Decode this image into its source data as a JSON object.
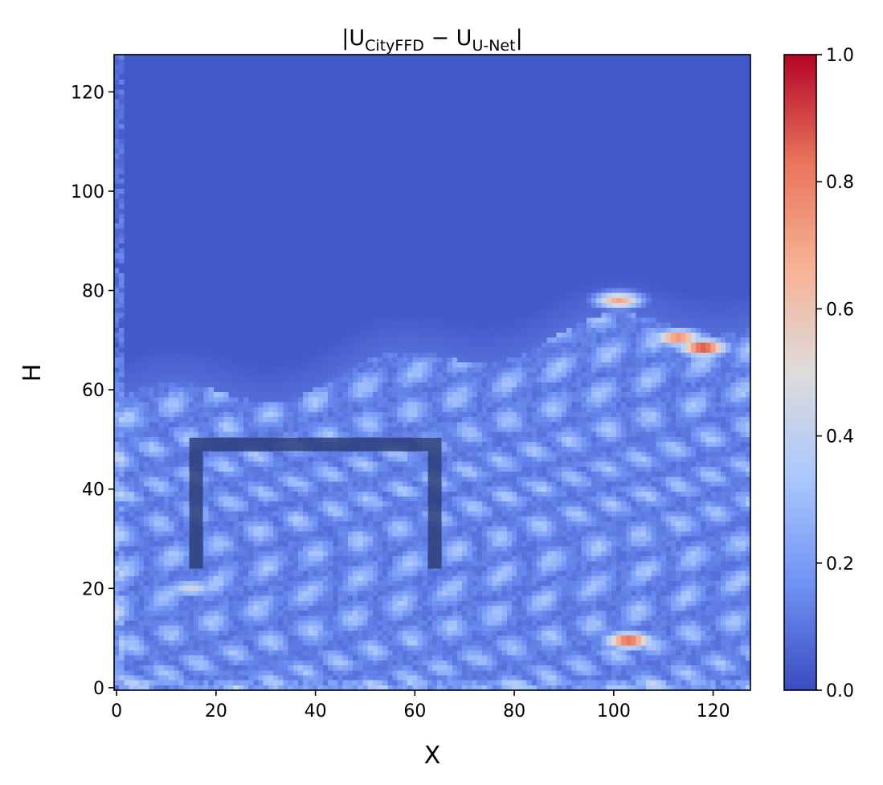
{
  "chart_data": {
    "type": "heatmap",
    "title": {
      "prefix": "|U",
      "sub1": "CityFFD",
      "minus": " − U",
      "sub2": "U-Net",
      "suffix": "|"
    },
    "xlabel": "X",
    "ylabel": "H",
    "xlim": [
      -0.5,
      127.5
    ],
    "ylim": [
      -0.5,
      127.5
    ],
    "xticks": [
      0,
      20,
      40,
      60,
      80,
      100,
      120
    ],
    "yticks": [
      0,
      20,
      40,
      60,
      80,
      100,
      120
    ],
    "xtick_labels": [
      "0",
      "20",
      "40",
      "60",
      "80",
      "100",
      "120"
    ],
    "ytick_labels": [
      "0",
      "20",
      "40",
      "60",
      "80",
      "100",
      "120"
    ],
    "colormap": "coolwarm",
    "colormap_stops": [
      "#3b4cc0",
      "#6f92f3",
      "#aac7fd",
      "#dddcdc",
      "#f7b194",
      "#e7745b",
      "#b40426"
    ],
    "colorbar": {
      "range": [
        0.0,
        1.0
      ],
      "ticks": [
        0.0,
        0.2,
        0.4,
        0.6,
        0.8,
        1.0
      ],
      "tick_labels": [
        "0.0",
        "0.2",
        "0.4",
        "0.6",
        "0.8",
        "1.0"
      ]
    },
    "grid": false,
    "field": {
      "resolution": [
        128,
        128
      ],
      "background_value": 0.03,
      "turbulent_region_top_H": 66,
      "hotspots": [
        {
          "x": 118,
          "h": 68.5,
          "peak": 0.95
        },
        {
          "x": 113,
          "h": 70.5,
          "peak": 0.8
        },
        {
          "x": 101,
          "h": 78,
          "peak": 0.7
        },
        {
          "x": 103,
          "h": 9.5,
          "peak": 0.9
        },
        {
          "x": 15,
          "h": 20,
          "peak": 0.45
        }
      ]
    },
    "obstacle": {
      "color": "#2e3f7a",
      "outline": [
        [
          16,
          24
        ],
        [
          16,
          49
        ],
        [
          64,
          49
        ],
        [
          64,
          24
        ]
      ]
    }
  }
}
